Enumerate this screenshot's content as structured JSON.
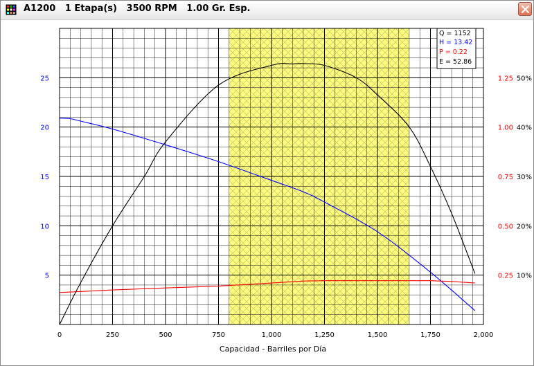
{
  "window": {
    "title": "A1200   1 Etapa(s)   3500 RPM   1.00 Gr. Esp.",
    "icon": "grid-app-icon",
    "close_icon": "close-icon"
  },
  "readout": {
    "q": "Q = 1152",
    "h": "H = 13.42",
    "p": "P = 0.22",
    "e": "E = 52.86"
  },
  "colors": {
    "head": "#0000ff",
    "power": "#ff0000",
    "efficiency": "#000000",
    "operating_range": "#ffff80"
  },
  "chart_data": {
    "type": "line",
    "xlabel": "Capacidad - Barriles por Día",
    "xlim": [
      0,
      2000
    ],
    "x_ticks": [
      "0",
      "250",
      "500",
      "750",
      "1,000",
      "1,250",
      "1,500",
      "1,750",
      "2,000"
    ],
    "y_left_lim": [
      0,
      30
    ],
    "y_left_ticks": [
      "5",
      "10",
      "15",
      "20",
      "25"
    ],
    "y_right_power_ticks": [
      "0.25",
      "0.50",
      "0.75",
      "1.00",
      "1.25"
    ],
    "y_right_eff_ticks": [
      "10%",
      "20%",
      "30%",
      "40%",
      "50%"
    ],
    "grid": true,
    "recommended_range": [
      800,
      1650
    ],
    "series": [
      {
        "key": "head",
        "axis": "left",
        "x": [
          0,
          50,
          100,
          250,
          500,
          750,
          1000,
          1152,
          1250,
          1500,
          1750,
          1960
        ],
        "y": [
          20.9,
          20.85,
          20.6,
          19.8,
          18.2,
          16.5,
          14.6,
          13.42,
          12.4,
          9.4,
          5.3,
          1.4
        ]
      },
      {
        "key": "power",
        "axis": "right",
        "x": [
          0,
          250,
          500,
          750,
          1000,
          1152,
          1250,
          1500,
          1750,
          1850,
          1960
        ],
        "y": [
          0.162,
          0.175,
          0.185,
          0.195,
          0.21,
          0.22,
          0.222,
          0.222,
          0.222,
          0.218,
          0.21
        ]
      },
      {
        "key": "efficiency",
        "axis": "right_pct",
        "x": [
          0,
          100,
          250,
          400,
          500,
          750,
          1000,
          1100,
          1152,
          1250,
          1400,
          1500,
          1650,
          1750,
          1850,
          1960
        ],
        "y": [
          0,
          8.5,
          20,
          30,
          37,
          48.5,
          52.5,
          52.8,
          52.86,
          52.5,
          50,
          46.5,
          40,
          32,
          22.5,
          10.3
        ]
      }
    ]
  }
}
